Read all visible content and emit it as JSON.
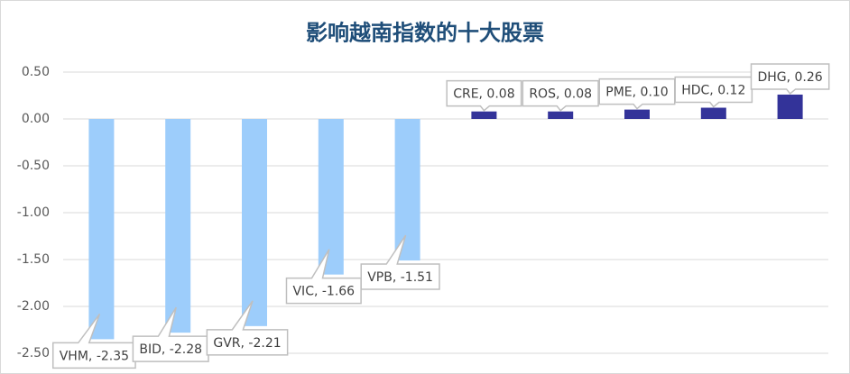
{
  "chart_data": {
    "type": "bar",
    "title": "影响越南指数的十大股票",
    "values": [
      -2.35,
      -2.28,
      -2.21,
      -1.66,
      -1.51,
      0.08,
      0.08,
      0.1,
      0.12,
      0.26
    ],
    "value_labels": [
      "VHM, -2.35",
      "BID, -2.28",
      "GVR, -2.21",
      "VIC, -1.66",
      "VPB, -1.51",
      "CRE, 0.08",
      "ROS, 0.08",
      "PME, 0.10",
      "HDC, 0.12",
      "DHG, 0.26"
    ],
    "colors": [
      "#9dcdfb",
      "#9dcdfb",
      "#9dcdfb",
      "#9dcdfb",
      "#9dcdfb",
      "#333399",
      "#333399",
      "#333399",
      "#333399",
      "#333399"
    ],
    "ylim": [
      -2.5,
      0.5
    ],
    "yticks": [
      {
        "value": 0.5,
        "label": "0.50"
      },
      {
        "value": 0,
        "label": "0.00"
      },
      {
        "value": -0.5,
        "label": "-0.50"
      },
      {
        "value": -1,
        "label": "-1.00"
      },
      {
        "value": -1.5,
        "label": "-1.50"
      },
      {
        "value": -2,
        "label": "-2.00"
      },
      {
        "value": -2.5,
        "label": "-2.50"
      }
    ],
    "grid": true
  }
}
